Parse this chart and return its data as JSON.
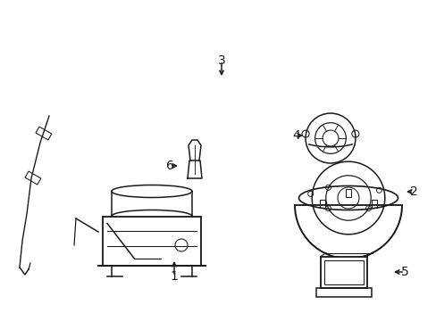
{
  "background_color": "#ffffff",
  "line_color": "#1a1a1a",
  "line_width": 1.1,
  "label_fontsize": 10,
  "fig_w": 4.89,
  "fig_h": 3.6,
  "dpi": 100
}
